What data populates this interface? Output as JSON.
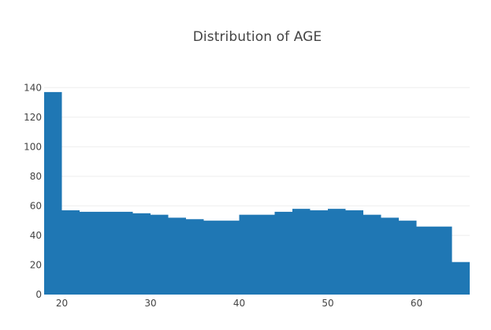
{
  "chart_data": {
    "type": "bar",
    "title": "Distribution of AGE",
    "xlabel": "",
    "ylabel": "",
    "bar_color": "#1f77b4",
    "grid": true,
    "xlim": [
      18,
      66
    ],
    "ylim": [
      0,
      146
    ],
    "x_ticks": [
      20,
      30,
      40,
      50,
      60
    ],
    "y_ticks": [
      0,
      20,
      40,
      60,
      80,
      100,
      120,
      140
    ],
    "bins": [
      {
        "x0": 18,
        "x1": 20,
        "value": 137
      },
      {
        "x0": 20,
        "x1": 22,
        "value": 57
      },
      {
        "x0": 22,
        "x1": 24,
        "value": 56
      },
      {
        "x0": 24,
        "x1": 26,
        "value": 56
      },
      {
        "x0": 26,
        "x1": 28,
        "value": 56
      },
      {
        "x0": 28,
        "x1": 30,
        "value": 55
      },
      {
        "x0": 30,
        "x1": 32,
        "value": 54
      },
      {
        "x0": 32,
        "x1": 34,
        "value": 52
      },
      {
        "x0": 34,
        "x1": 36,
        "value": 51
      },
      {
        "x0": 36,
        "x1": 38,
        "value": 50
      },
      {
        "x0": 38,
        "x1": 40,
        "value": 50
      },
      {
        "x0": 40,
        "x1": 42,
        "value": 54
      },
      {
        "x0": 42,
        "x1": 44,
        "value": 54
      },
      {
        "x0": 44,
        "x1": 46,
        "value": 56
      },
      {
        "x0": 46,
        "x1": 48,
        "value": 58
      },
      {
        "x0": 48,
        "x1": 50,
        "value": 57
      },
      {
        "x0": 50,
        "x1": 52,
        "value": 58
      },
      {
        "x0": 52,
        "x1": 54,
        "value": 57
      },
      {
        "x0": 54,
        "x1": 56,
        "value": 54
      },
      {
        "x0": 56,
        "x1": 58,
        "value": 52
      },
      {
        "x0": 58,
        "x1": 60,
        "value": 50
      },
      {
        "x0": 60,
        "x1": 62,
        "value": 46
      },
      {
        "x0": 62,
        "x1": 64,
        "value": 46
      },
      {
        "x0": 64,
        "x1": 66,
        "value": 22
      }
    ]
  }
}
